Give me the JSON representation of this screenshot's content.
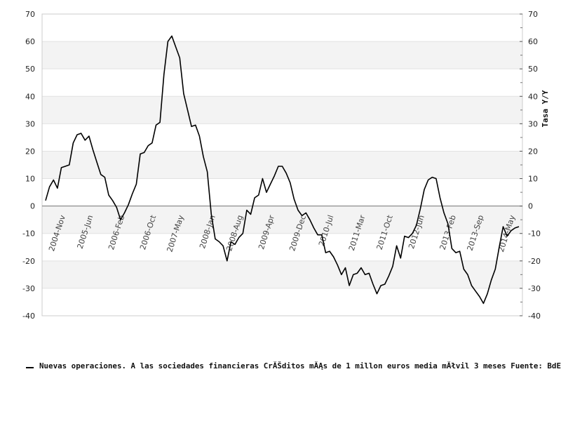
{
  "chart_data": {
    "type": "line",
    "title": "",
    "xlabel": "",
    "ylabel_right": "Tasa Y/Y",
    "ylim": [
      -40,
      70
    ],
    "y_ticks": [
      -40,
      -30,
      -20,
      -10,
      0,
      10,
      20,
      30,
      40,
      50,
      60,
      70
    ],
    "x_ticks": [
      {
        "label": "2004-Nov",
        "x": 5
      },
      {
        "label": "2005-Jun",
        "x": 12
      },
      {
        "label": "2006-Feb",
        "x": 20
      },
      {
        "label": "2006-Oct",
        "x": 28
      },
      {
        "label": "2007-May",
        "x": 35
      },
      {
        "label": "2008-Jan",
        "x": 43
      },
      {
        "label": "2008-Aug",
        "x": 50
      },
      {
        "label": "2009-Apr",
        "x": 58
      },
      {
        "label": "2009-Dec",
        "x": 66
      },
      {
        "label": "2010-Jul",
        "x": 73
      },
      {
        "label": "2011-Mar",
        "x": 81
      },
      {
        "label": "2011-Oct",
        "x": 88
      },
      {
        "label": "2012-Jun",
        "x": 96
      },
      {
        "label": "2013-Feb",
        "x": 104
      },
      {
        "label": "2013-Sep",
        "x": 111
      },
      {
        "label": "2014-May",
        "x": 119
      }
    ],
    "grid": "horizontal bands",
    "legend_position": "bottom",
    "series": [
      {
        "name": "Nuevas operaciones. A las sociedades financieras CrĂŠditos mĂĄs de 1 millon euros media mĂłvil 3 meses  Fuente: BdE",
        "color": "#000000",
        "x": [
          0,
          1,
          2,
          3,
          4,
          5,
          6,
          7,
          8,
          9,
          10,
          11,
          12,
          13,
          14,
          15,
          16,
          17,
          18,
          19,
          20,
          21,
          22,
          23,
          24,
          25,
          26,
          27,
          28,
          29,
          30,
          31,
          32,
          33,
          34,
          35,
          36,
          37,
          38,
          39,
          40,
          41,
          42,
          43,
          44,
          45,
          46,
          47,
          48,
          49,
          50,
          51,
          52,
          53,
          54,
          55,
          56,
          57,
          58,
          59,
          60,
          61,
          62,
          63,
          64,
          65,
          66,
          67,
          68,
          69,
          70,
          71,
          72,
          73,
          74,
          75,
          76,
          77,
          78,
          79,
          80,
          81,
          82,
          83,
          84,
          85,
          86,
          87,
          88,
          89,
          90,
          91,
          92,
          93,
          94,
          95,
          96,
          97,
          98,
          99,
          100,
          101,
          102,
          103,
          104,
          105,
          106,
          107,
          108,
          109,
          110,
          111,
          112,
          113,
          114,
          115,
          116,
          117,
          118,
          119,
          120
        ],
        "values": [
          2,
          7,
          9.5,
          6.5,
          14,
          14.5,
          15,
          23,
          26,
          26.5,
          24,
          25.5,
          20.5,
          16,
          11.5,
          10.5,
          4,
          2,
          -0.5,
          -5,
          -2.5,
          0.5,
          4.5,
          8,
          19,
          19.5,
          22,
          23,
          29.5,
          30.5,
          48,
          60,
          62,
          58,
          54,
          41,
          35,
          29,
          29.5,
          25.5,
          18,
          12.5,
          -3,
          -12,
          -13,
          -14.5,
          -20,
          -13,
          -14,
          -11.5,
          -10,
          -1.5,
          -3,
          3,
          4,
          10,
          5,
          8,
          11,
          14.5,
          14.5,
          12,
          8.5,
          2.5,
          -1.5,
          -3.5,
          -2.5,
          -5,
          -8,
          -10.5,
          -10.5,
          -17,
          -16.5,
          -18.5,
          -21.5,
          -25,
          -22.5,
          -29,
          -25,
          -24.5,
          -22.5,
          -25,
          -24.5,
          -28.5,
          -32,
          -29,
          -28.5,
          -25.5,
          -22,
          -14.5,
          -19,
          -11,
          -11.5,
          -10,
          -7,
          -1,
          6,
          9.5,
          10.5,
          10,
          3,
          -2.5,
          -6.5,
          -15.5,
          -17,
          -16.5,
          -23,
          -25,
          -29,
          -31,
          -33,
          -35.5,
          -32,
          -27,
          -23,
          -15,
          -7.5,
          -11,
          -9,
          -8,
          -7.5
        ]
      }
    ]
  }
}
